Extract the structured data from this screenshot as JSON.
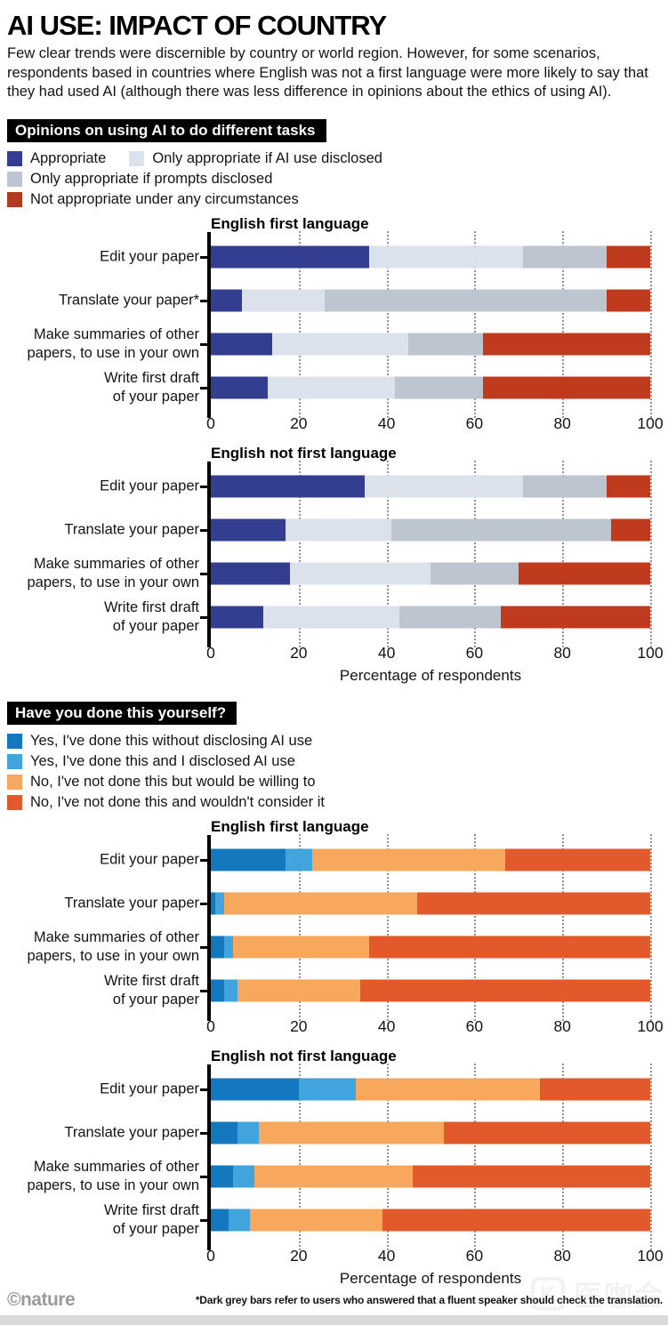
{
  "header": {
    "title": "AI USE: IMPACT OF COUNTRY",
    "intro": "Few clear trends were discernible by country or world region. However, for some scenarios, respondents based in countries where English was not a first language were more likely to say that they had used AI (although there was less difference in opinions about the ethics of using AI)."
  },
  "sections": [
    {
      "heading": "Opinions on using AI to do different tasks",
      "xlabel": "Percentage of respondents",
      "legend": [
        {
          "label": "Appropriate",
          "color": "#333e90"
        },
        {
          "label": "Only appropriate if AI use disclosed",
          "color": "#dce2ec"
        },
        {
          "label": "Only appropriate if prompts disclosed",
          "color": "#bdc5d1"
        },
        {
          "label": "Not appropriate under any circumstances",
          "color": "#b23a20"
        }
      ]
    },
    {
      "heading": "Have you done this yourself?",
      "xlabel": "Percentage of respondents",
      "legend": [
        {
          "label": "Yes, I've done this without disclosing AI use",
          "color": "#1478be"
        },
        {
          "label": "Yes, I've done this and I disclosed AI use",
          "color": "#42a4dc"
        },
        {
          "label": "No, I've not done this but would be willing to",
          "color": "#f7a85c"
        },
        {
          "label": "No, I've not done this and wouldn't consider it",
          "color": "#e2592b"
        }
      ]
    }
  ],
  "chart_data": [
    {
      "type": "bar",
      "stacked": true,
      "group": 0,
      "title": "English first language",
      "categories": [
        "Edit your paper",
        "Translate your paper*",
        "Make summaries of other\npapers, to use in your own",
        "Write first draft\nof your paper"
      ],
      "xlim": [
        0,
        100
      ],
      "xticks": [
        0,
        20,
        40,
        60,
        80,
        100
      ],
      "series": [
        {
          "name": "Appropriate",
          "color": "#333e90",
          "values": [
            36,
            7,
            14,
            13
          ]
        },
        {
          "name": "Only appropriate if AI use disclosed",
          "color": "#dce2ec",
          "values": [
            35,
            19,
            31,
            29
          ]
        },
        {
          "name": "Only appropriate if prompts disclosed",
          "color": "#bdc5d1",
          "values": [
            19,
            64,
            17,
            20
          ]
        },
        {
          "name": "Not appropriate under any circumstances",
          "color": "#c03a1e",
          "values": [
            10,
            10,
            38,
            38
          ]
        }
      ]
    },
    {
      "type": "bar",
      "stacked": true,
      "group": 0,
      "title": "English not first language",
      "categories": [
        "Edit your paper",
        "Translate your paper",
        "Make summaries of other\npapers, to use in your own",
        "Write first draft\nof your paper"
      ],
      "xlim": [
        0,
        100
      ],
      "xticks": [
        0,
        20,
        40,
        60,
        80,
        100
      ],
      "series": [
        {
          "name": "Appropriate",
          "color": "#333e90",
          "values": [
            35,
            17,
            18,
            12
          ]
        },
        {
          "name": "Only appropriate if AI use disclosed",
          "color": "#dce2ec",
          "values": [
            36,
            24,
            32,
            31
          ]
        },
        {
          "name": "Only appropriate if prompts disclosed",
          "color": "#bdc5d1",
          "values": [
            19,
            50,
            20,
            23
          ]
        },
        {
          "name": "Not appropriate under any circumstances",
          "color": "#c03a1e",
          "values": [
            10,
            9,
            30,
            34
          ]
        }
      ]
    },
    {
      "type": "bar",
      "stacked": true,
      "group": 1,
      "title": "English first language",
      "categories": [
        "Edit your paper",
        "Translate your paper",
        "Make summaries of other\npapers, to use in your own",
        "Write first draft\nof your paper"
      ],
      "xlim": [
        0,
        100
      ],
      "xticks": [
        0,
        20,
        40,
        60,
        80,
        100
      ],
      "series": [
        {
          "name": "Yes, I've done this without disclosing AI use",
          "color": "#1478be",
          "values": [
            17,
            1,
            3,
            3
          ]
        },
        {
          "name": "Yes, I've done this and I disclosed AI use",
          "color": "#42a4dc",
          "values": [
            6,
            2,
            2,
            3
          ]
        },
        {
          "name": "No, I've not done this but would be willing to",
          "color": "#f7a85c",
          "values": [
            44,
            44,
            31,
            28
          ]
        },
        {
          "name": "No, I've not done this and wouldn't consider it",
          "color": "#e2592b",
          "values": [
            33,
            53,
            64,
            66
          ]
        }
      ]
    },
    {
      "type": "bar",
      "stacked": true,
      "group": 1,
      "title": "English not first language",
      "categories": [
        "Edit your paper",
        "Translate your paper",
        "Make summaries of other\npapers, to use in your own",
        "Write first draft\nof your paper"
      ],
      "xlim": [
        0,
        100
      ],
      "xticks": [
        0,
        20,
        40,
        60,
        80,
        100
      ],
      "series": [
        {
          "name": "Yes, I've done this without disclosing AI use",
          "color": "#1478be",
          "values": [
            20,
            6,
            5,
            4
          ]
        },
        {
          "name": "Yes, I've done this and I disclosed AI use",
          "color": "#42a4dc",
          "values": [
            13,
            5,
            5,
            5
          ]
        },
        {
          "name": "No, I've not done this but would be willing to",
          "color": "#f7a85c",
          "values": [
            42,
            42,
            36,
            30
          ]
        },
        {
          "name": "No, I've not done this and wouldn't consider it",
          "color": "#e2592b",
          "values": [
            25,
            47,
            54,
            61
          ]
        }
      ]
    }
  ],
  "footer": {
    "credit": "©nature",
    "footnote": "*Dark grey bars refer to users who answered that a fluent speaker should check the translation.",
    "watermark": "医咖会"
  }
}
